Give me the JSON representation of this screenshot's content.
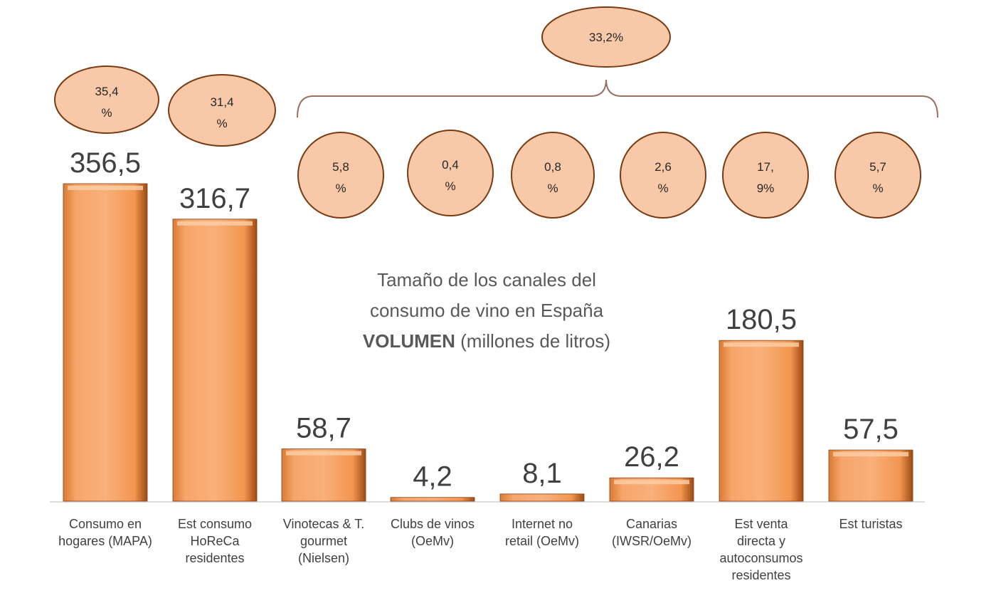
{
  "chart_data": {
    "type": "bar",
    "title": [
      "Tamaño de los canales del",
      "consumo de vino en España"
    ],
    "title_bold": "VOLUMEN",
    "title_suffix": " (millones de litros)",
    "categories": [
      [
        "Consumo en",
        "hogares (MAPA)"
      ],
      [
        "Est consumo",
        "HoReCa",
        "residentes"
      ],
      [
        "Vinotecas & T.",
        "gourmet",
        "(Nielsen)"
      ],
      [
        "Clubs de vinos",
        "(OeMv)"
      ],
      [
        "Internet no",
        "retail (OeMv)"
      ],
      [
        "Canarias",
        "(IWSR/OeMv)"
      ],
      [
        "Est venta",
        "directa y",
        "autoconsumos",
        "residentes"
      ],
      [
        "Est turistas"
      ]
    ],
    "values": [
      356.5,
      316.7,
      58.7,
      4.2,
      8.1,
      26.2,
      180.5,
      57.5
    ],
    "value_labels": [
      "356,5",
      "316,7",
      "58,7",
      "4,2",
      "8,1",
      "26,2",
      "180,5",
      "57,5"
    ],
    "share_labels": [
      [
        "35,4",
        "%"
      ],
      [
        "31,4",
        "%"
      ],
      [
        "5,8",
        "%"
      ],
      [
        "0,4",
        "%"
      ],
      [
        "0,8",
        "%"
      ],
      [
        "2,6",
        "%"
      ],
      [
        "17,",
        "9%"
      ],
      [
        "5,7",
        "%"
      ]
    ],
    "group_share_label": "33,2%",
    "ylim": [
      0,
      360
    ],
    "grid": false,
    "colors": {
      "bar": "#f4a060",
      "bar_dark": "#c8621e",
      "bubble": "#f8c9a8",
      "bubble_stroke": "#7a3a10",
      "brace": "#9a7060"
    }
  }
}
